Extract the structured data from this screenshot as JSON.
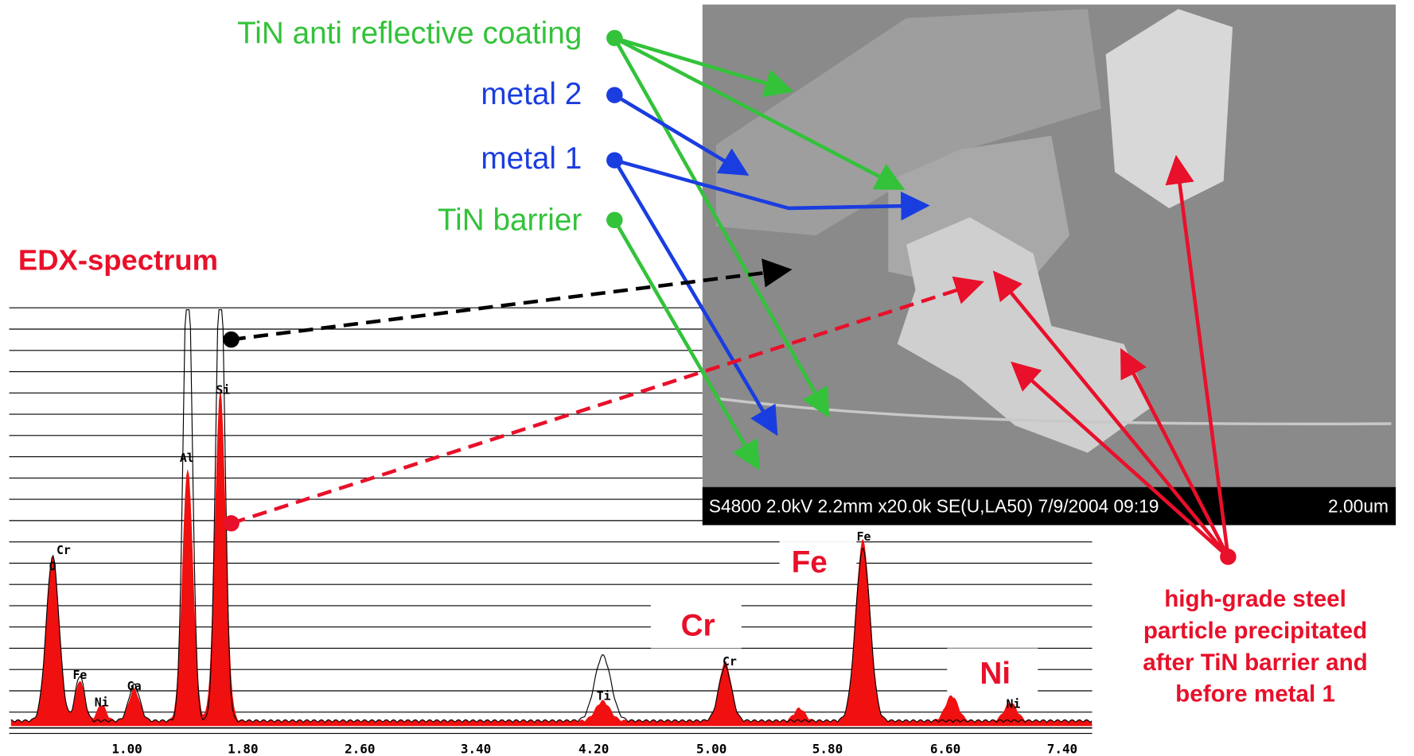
{
  "callouts": {
    "tin_arc": "TiN anti reflective coating",
    "metal2": "metal 2",
    "metal1": "metal 1",
    "tin_barrier": "TiN barrier"
  },
  "spectrum": {
    "title": "EDX-spectrum",
    "x_labels": [
      "1.00",
      "1.80",
      "2.60",
      "3.40",
      "4.20",
      "5.00",
      "5.80",
      "6.60",
      "7.40"
    ],
    "peak_labels": [
      "Cr",
      "O",
      "Fe",
      "Ni",
      "Ga",
      "Al",
      "Si",
      "Ti",
      "Cr",
      "Fe",
      "Ni"
    ],
    "element_labels": [
      "Fe",
      "Cr",
      "Ni"
    ]
  },
  "sem_image": {
    "caption": "S4800 2.0kV 2.2mm x20.0k SE(U,LA50) 7/9/2004 09:19",
    "scale": "2.00um"
  },
  "note": [
    "high-grade steel",
    "particle precipitated",
    "after TiN barrier and",
    "before metal 1"
  ]
}
